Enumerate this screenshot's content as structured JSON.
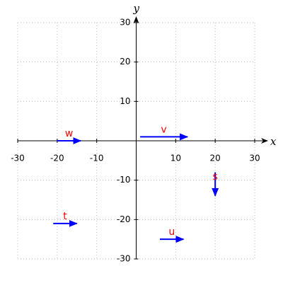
{
  "chart_data": {
    "type": "quiver",
    "xlabel": "x",
    "ylabel": "y",
    "xlim": [
      -30,
      30
    ],
    "ylim": [
      -30,
      30
    ],
    "xticks": [
      -30,
      -20,
      -10,
      10,
      20,
      30
    ],
    "yticks": [
      -30,
      -20,
      -10,
      10,
      20,
      30
    ],
    "grid": true,
    "color": "#0000ff",
    "label_color": "#ff0000",
    "vectors": [
      {
        "name": "w",
        "x": -20,
        "y": 0,
        "dx": 6,
        "dy": 0
      },
      {
        "name": "v",
        "x": 1,
        "y": 1,
        "dx": 12,
        "dy": 0
      },
      {
        "name": "s",
        "x": 20,
        "y": -8,
        "dx": 0,
        "dy": -6
      },
      {
        "name": "t",
        "x": -21,
        "y": -21,
        "dx": 6,
        "dy": 0
      },
      {
        "name": "u",
        "x": 6,
        "y": -25,
        "dx": 6,
        "dy": 0
      }
    ]
  }
}
